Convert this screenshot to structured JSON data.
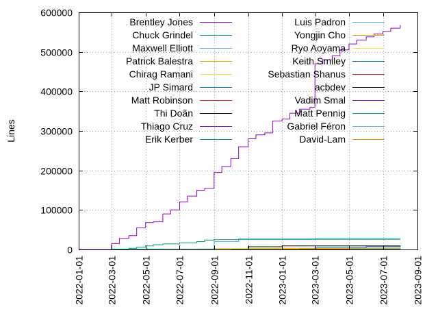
{
  "chart_data": {
    "type": "line",
    "title": "",
    "xlabel": "",
    "ylabel": "Lines",
    "xlim": [
      "2022-01-01",
      "2023-09-01"
    ],
    "ylim": [
      0,
      600000
    ],
    "grid": true,
    "legend_position": "top, two columns",
    "x_ticks": [
      "2022-01-01",
      "2022-03-01",
      "2022-05-01",
      "2022-07-01",
      "2022-09-01",
      "2022-11-01",
      "2023-01-01",
      "2023-03-01",
      "2023-05-01",
      "2023-07-01",
      "2023-09-01"
    ],
    "y_ticks": [
      "0",
      "100000",
      "200000",
      "300000",
      "400000",
      "500000",
      "600000"
    ],
    "series": [
      {
        "name": "Brentley Jones",
        "color": "#9400d3",
        "points": [
          [
            "2022-01-01",
            0
          ],
          [
            "2022-02-15",
            0
          ],
          [
            "2022-03-01",
            15000
          ],
          [
            "2022-03-15",
            28000
          ],
          [
            "2022-04-01",
            35000
          ],
          [
            "2022-04-15",
            55000
          ],
          [
            "2022-05-01",
            68000
          ],
          [
            "2022-05-15",
            70000
          ],
          [
            "2022-06-01",
            90000
          ],
          [
            "2022-06-15",
            100000
          ],
          [
            "2022-07-01",
            120000
          ],
          [
            "2022-07-15",
            135000
          ],
          [
            "2022-08-01",
            150000
          ],
          [
            "2022-08-15",
            155000
          ],
          [
            "2022-09-01",
            195000
          ],
          [
            "2022-09-15",
            210000
          ],
          [
            "2022-10-01",
            230000
          ],
          [
            "2022-10-15",
            260000
          ],
          [
            "2022-11-01",
            280000
          ],
          [
            "2022-11-15",
            290000
          ],
          [
            "2022-12-01",
            295000
          ],
          [
            "2022-12-15",
            325000
          ],
          [
            "2023-01-01",
            330000
          ],
          [
            "2023-01-15",
            345000
          ],
          [
            "2023-02-01",
            355000
          ],
          [
            "2023-02-20",
            360000
          ],
          [
            "2023-03-01",
            470000
          ],
          [
            "2023-03-15",
            480000
          ],
          [
            "2023-04-01",
            490000
          ],
          [
            "2023-04-15",
            505000
          ],
          [
            "2023-05-01",
            520000
          ],
          [
            "2023-05-15",
            530000
          ],
          [
            "2023-06-01",
            538000
          ],
          [
            "2023-06-15",
            545000
          ],
          [
            "2023-07-01",
            552000
          ],
          [
            "2023-07-15",
            560000
          ],
          [
            "2023-08-01",
            568000
          ]
        ]
      },
      {
        "name": "Chuck Grindel",
        "color": "#009e73",
        "points": [
          [
            "2022-01-01",
            0
          ],
          [
            "2022-03-15",
            0
          ],
          [
            "2022-04-01",
            3000
          ],
          [
            "2022-04-15",
            6000
          ],
          [
            "2022-05-01",
            9000
          ],
          [
            "2022-05-15",
            12000
          ],
          [
            "2022-06-01",
            14000
          ],
          [
            "2022-07-01",
            17000
          ],
          [
            "2022-08-01",
            20000
          ],
          [
            "2022-08-15",
            24000
          ],
          [
            "2022-09-01",
            25000
          ],
          [
            "2022-10-15",
            25500
          ],
          [
            "2023-08-01",
            26000
          ]
        ]
      },
      {
        "name": "Maxwell Elliott",
        "color": "#56b4e9",
        "points": [
          [
            "2022-01-01",
            0
          ],
          [
            "2022-08-01",
            0
          ],
          [
            "2022-09-01",
            20000
          ],
          [
            "2022-10-15",
            27000
          ],
          [
            "2023-03-01",
            28500
          ],
          [
            "2023-08-01",
            29000
          ]
        ]
      },
      {
        "name": "Patrick Balestra",
        "color": "#e69f00",
        "points": [
          [
            "2022-01-01",
            0
          ],
          [
            "2022-06-01",
            500
          ],
          [
            "2022-09-01",
            1500
          ],
          [
            "2023-02-01",
            2500
          ],
          [
            "2023-08-01",
            3000
          ]
        ]
      },
      {
        "name": "Chirag Ramani",
        "color": "#f0e442",
        "points": [
          [
            "2022-01-01",
            0
          ],
          [
            "2022-09-15",
            0
          ],
          [
            "2022-10-01",
            2000
          ],
          [
            "2022-11-01",
            3000
          ],
          [
            "2023-08-01",
            4000
          ]
        ]
      },
      {
        "name": "JP Simard",
        "color": "#0072b2",
        "points": [
          [
            "2022-01-01",
            0
          ],
          [
            "2022-11-15",
            0
          ],
          [
            "2023-01-01",
            3000
          ],
          [
            "2023-03-01",
            5000
          ],
          [
            "2023-06-01",
            7000
          ],
          [
            "2023-08-01",
            8000
          ]
        ]
      },
      {
        "name": "Matt Robinson",
        "color": "#e51e10",
        "points": [
          [
            "2022-01-01",
            0
          ],
          [
            "2023-01-15",
            0
          ],
          [
            "2023-05-01",
            3000
          ],
          [
            "2023-08-01",
            3500
          ]
        ]
      },
      {
        "name": "Thi Doãn",
        "color": "#000000",
        "points": [
          [
            "2022-01-01",
            0
          ],
          [
            "2022-10-15",
            0
          ],
          [
            "2022-11-01",
            7000
          ],
          [
            "2023-01-01",
            9000
          ],
          [
            "2023-08-01",
            10000
          ]
        ]
      },
      {
        "name": "Thiago Cruz",
        "color": "#9400d3",
        "points": [
          [
            "2022-01-01",
            0
          ],
          [
            "2023-03-01",
            0
          ],
          [
            "2023-05-01",
            2500
          ],
          [
            "2023-08-01",
            4000
          ]
        ]
      },
      {
        "name": "Erik Kerber",
        "color": "#009e73",
        "points": [
          [
            "2022-01-01",
            0
          ],
          [
            "2022-03-01",
            1000
          ],
          [
            "2022-09-01",
            1500
          ],
          [
            "2023-08-01",
            2000
          ]
        ]
      },
      {
        "name": "Luis Padron",
        "color": "#56b4e9",
        "points": [
          [
            "2022-01-01",
            0
          ],
          [
            "2022-06-01",
            500
          ],
          [
            "2023-08-01",
            1500
          ]
        ]
      },
      {
        "name": "Yongjin Cho",
        "color": "#e69f00",
        "points": [
          [
            "2022-01-01",
            0
          ],
          [
            "2022-08-01",
            1000
          ],
          [
            "2023-08-01",
            1500
          ]
        ]
      },
      {
        "name": "Ryo Aoyama",
        "color": "#f0e442",
        "points": [
          [
            "2022-01-01",
            0
          ],
          [
            "2022-07-01",
            500
          ],
          [
            "2023-08-01",
            1000
          ]
        ]
      },
      {
        "name": "Keith Smiley",
        "color": "#0072b2",
        "points": [
          [
            "2022-01-01",
            0
          ],
          [
            "2022-04-01",
            300
          ],
          [
            "2023-03-01",
            800
          ],
          [
            "2023-08-01",
            1200
          ]
        ]
      },
      {
        "name": "Sebastian Shanus",
        "color": "#e51e10",
        "points": [
          [
            "2022-01-01",
            0
          ],
          [
            "2023-05-01",
            1500
          ],
          [
            "2023-08-01",
            2000
          ]
        ]
      },
      {
        "name": "acbdev",
        "color": "#000000",
        "points": [
          [
            "2022-01-01",
            0
          ],
          [
            "2023-06-01",
            500
          ],
          [
            "2023-08-01",
            800
          ]
        ]
      },
      {
        "name": "Vadim Smal",
        "color": "#9400d3",
        "points": [
          [
            "2022-01-01",
            0
          ],
          [
            "2023-04-01",
            500
          ],
          [
            "2023-08-01",
            700
          ]
        ]
      },
      {
        "name": "Matt Pennig",
        "color": "#009e73",
        "points": [
          [
            "2022-01-01",
            0
          ],
          [
            "2023-02-01",
            300
          ],
          [
            "2023-08-01",
            600
          ]
        ]
      },
      {
        "name": "Gabriel Féron",
        "color": "#56b4e9",
        "points": [
          [
            "2022-01-01",
            0
          ],
          [
            "2022-12-01",
            300
          ],
          [
            "2023-08-01",
            500
          ]
        ]
      },
      {
        "name": "David-Lam",
        "color": "#e69f00",
        "points": [
          [
            "2022-01-01",
            0
          ],
          [
            "2023-01-01",
            200
          ],
          [
            "2023-08-01",
            400
          ]
        ]
      }
    ]
  }
}
